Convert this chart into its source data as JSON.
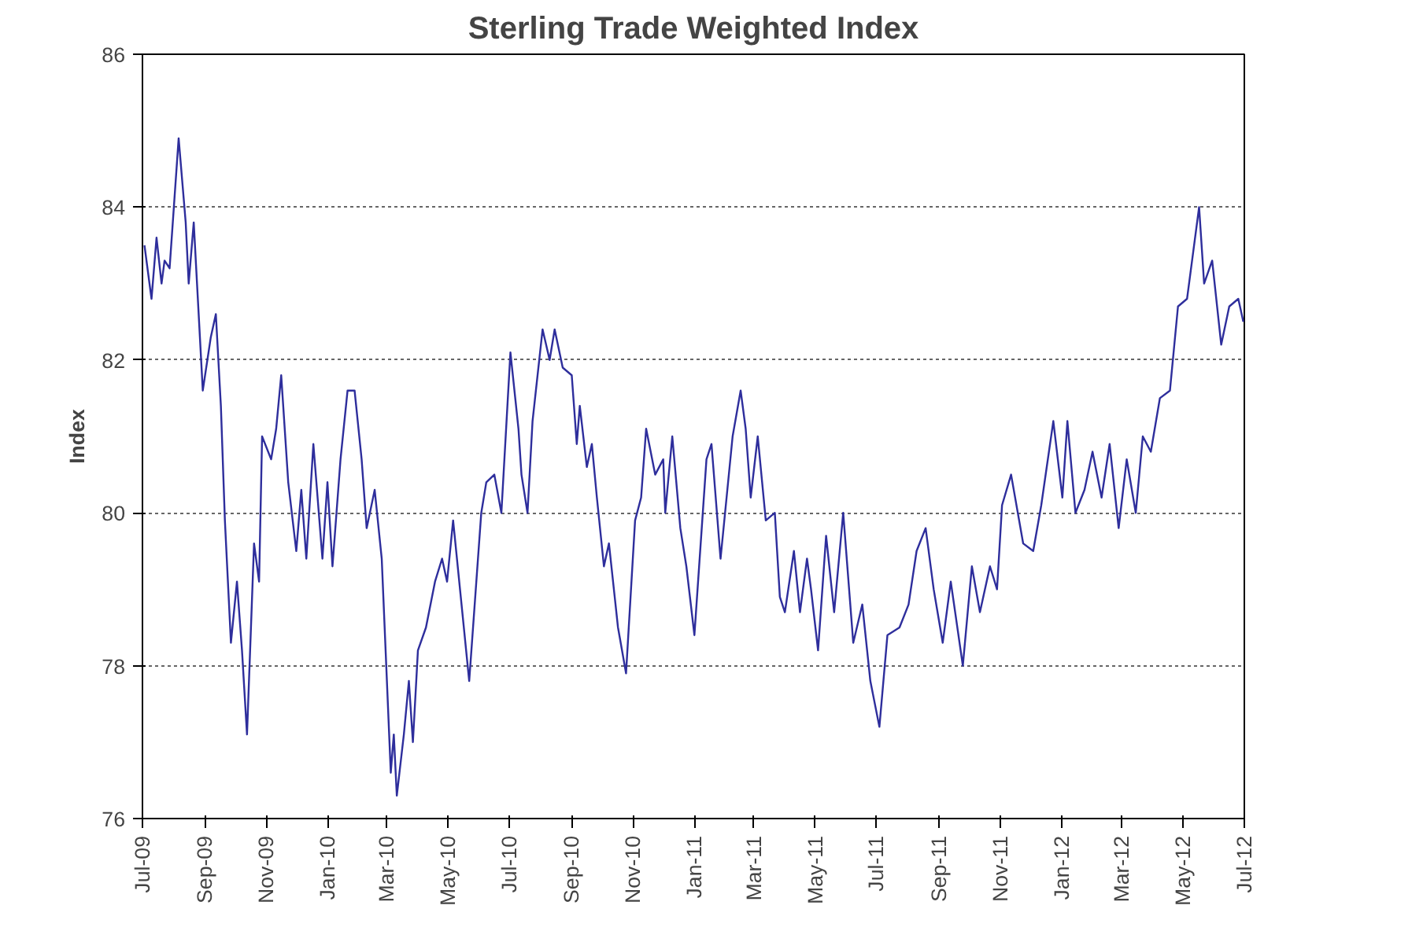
{
  "chart_data": {
    "type": "line",
    "title": "Sterling Trade Weighted Index",
    "ylabel": "Index",
    "xlim": [
      "2009-07-01",
      "2012-07-01"
    ],
    "xticks": [
      {
        "value": "2009-07-01",
        "label": "Jul-09"
      },
      {
        "value": "2009-09-01",
        "label": "Sep-09"
      },
      {
        "value": "2009-11-01",
        "label": "Nov-09"
      },
      {
        "value": "2010-01-01",
        "label": "Jan-10"
      },
      {
        "value": "2010-03-01",
        "label": "Mar-10"
      },
      {
        "value": "2010-05-01",
        "label": "May-10"
      },
      {
        "value": "2010-07-01",
        "label": "Jul-10"
      },
      {
        "value": "2010-09-01",
        "label": "Sep-10"
      },
      {
        "value": "2010-11-01",
        "label": "Nov-10"
      },
      {
        "value": "2011-01-01",
        "label": "Jan-11"
      },
      {
        "value": "2011-03-01",
        "label": "Mar-11"
      },
      {
        "value": "2011-05-01",
        "label": "May-11"
      },
      {
        "value": "2011-07-01",
        "label": "Jul-11"
      },
      {
        "value": "2011-09-01",
        "label": "Sep-11"
      },
      {
        "value": "2011-11-01",
        "label": "Nov-11"
      },
      {
        "value": "2012-01-01",
        "label": "Jan-12"
      },
      {
        "value": "2012-03-01",
        "label": "Mar-12"
      },
      {
        "value": "2012-05-01",
        "label": "May-12"
      },
      {
        "value": "2012-07-01",
        "label": "Jul-12"
      }
    ],
    "ylim": [
      76,
      86
    ],
    "yticks": [
      76,
      78,
      80,
      82,
      84,
      86
    ],
    "grid": "y",
    "marker": "none",
    "line_style": "solid",
    "x": [
      "2009-07-03",
      "2009-07-10",
      "2009-07-15",
      "2009-07-20",
      "2009-07-23",
      "2009-07-28",
      "2009-08-06",
      "2009-08-13",
      "2009-08-16",
      "2009-08-21",
      "2009-08-30",
      "2009-09-07",
      "2009-09-12",
      "2009-09-17",
      "2009-09-21",
      "2009-09-27",
      "2009-10-03",
      "2009-10-08",
      "2009-10-13",
      "2009-10-20",
      "2009-10-25",
      "2009-10-28",
      "2009-11-06",
      "2009-11-11",
      "2009-11-16",
      "2009-11-23",
      "2009-12-01",
      "2009-12-06",
      "2009-12-11",
      "2009-12-18",
      "2009-12-27",
      "2010-01-01",
      "2010-01-06",
      "2010-01-14",
      "2010-01-21",
      "2010-01-28",
      "2010-02-04",
      "2010-02-09",
      "2010-02-17",
      "2010-02-24",
      "2010-03-05",
      "2010-03-08",
      "2010-03-11",
      "2010-03-18",
      "2010-03-23",
      "2010-03-27",
      "2010-04-01",
      "2010-04-09",
      "2010-04-18",
      "2010-04-25",
      "2010-04-30",
      "2010-05-06",
      "2010-05-22",
      "2010-06-03",
      "2010-06-08",
      "2010-06-16",
      "2010-06-23",
      "2010-07-02",
      "2010-07-10",
      "2010-07-13",
      "2010-07-19",
      "2010-07-24",
      "2010-08-03",
      "2010-08-10",
      "2010-08-15",
      "2010-08-23",
      "2010-09-01",
      "2010-09-06",
      "2010-09-09",
      "2010-09-16",
      "2010-09-21",
      "2010-09-26",
      "2010-10-03",
      "2010-10-08",
      "2010-10-17",
      "2010-10-25",
      "2010-11-03",
      "2010-11-09",
      "2010-11-14",
      "2010-11-23",
      "2010-12-01",
      "2010-12-03",
      "2010-12-10",
      "2010-12-18",
      "2010-12-24",
      "2011-01-01",
      "2011-01-13",
      "2011-01-18",
      "2011-01-27",
      "2011-02-08",
      "2011-02-16",
      "2011-02-21",
      "2011-02-26",
      "2011-03-05",
      "2011-03-13",
      "2011-03-22",
      "2011-03-27",
      "2011-04-01",
      "2011-04-10",
      "2011-04-16",
      "2011-04-23",
      "2011-04-27",
      "2011-05-04",
      "2011-05-12",
      "2011-05-20",
      "2011-05-29",
      "2011-06-08",
      "2011-06-17",
      "2011-06-25",
      "2011-07-04",
      "2011-07-12",
      "2011-07-24",
      "2011-08-02",
      "2011-08-10",
      "2011-08-19",
      "2011-08-27",
      "2011-09-05",
      "2011-09-13",
      "2011-09-25",
      "2011-10-04",
      "2011-10-12",
      "2011-10-22",
      "2011-10-29",
      "2011-11-03",
      "2011-11-12",
      "2011-11-24",
      "2011-12-04",
      "2011-12-12",
      "2011-12-24",
      "2012-01-02",
      "2012-01-07",
      "2012-01-15",
      "2012-01-24",
      "2012-02-01",
      "2012-02-10",
      "2012-02-18",
      "2012-02-27",
      "2012-03-06",
      "2012-03-15",
      "2012-03-22",
      "2012-03-30",
      "2012-04-08",
      "2012-04-18",
      "2012-04-26",
      "2012-05-05",
      "2012-05-17",
      "2012-05-22",
      "2012-05-30",
      "2012-06-08",
      "2012-06-16",
      "2012-06-25",
      "2012-06-30"
    ],
    "series": [
      {
        "color": "#2e2e9c",
        "values": [
          83.5,
          82.8,
          83.6,
          83.0,
          83.3,
          83.2,
          84.9,
          83.8,
          83.0,
          83.8,
          81.6,
          82.3,
          82.6,
          81.4,
          79.9,
          78.3,
          79.1,
          78.2,
          77.1,
          79.6,
          79.1,
          81.0,
          80.7,
          81.1,
          81.8,
          80.4,
          79.5,
          80.3,
          79.4,
          80.9,
          79.4,
          80.4,
          79.3,
          80.7,
          81.6,
          81.6,
          80.7,
          79.8,
          80.3,
          79.4,
          76.6,
          77.1,
          76.3,
          77.1,
          77.8,
          77.0,
          78.2,
          78.5,
          79.1,
          79.4,
          79.1,
          79.9,
          77.8,
          80.0,
          80.4,
          80.5,
          80.0,
          82.1,
          81.1,
          80.5,
          80.0,
          81.2,
          82.4,
          82.0,
          82.4,
          81.9,
          81.8,
          80.9,
          81.4,
          80.6,
          80.9,
          80.2,
          79.3,
          79.6,
          78.5,
          77.9,
          79.9,
          80.2,
          81.1,
          80.5,
          80.7,
          80.0,
          81.0,
          79.8,
          79.3,
          78.4,
          80.7,
          80.9,
          79.4,
          81.0,
          81.6,
          81.1,
          80.2,
          81.0,
          79.9,
          80.0,
          78.9,
          78.7,
          79.5,
          78.7,
          79.4,
          79.0,
          78.2,
          79.7,
          78.7,
          80.0,
          78.3,
          78.8,
          77.8,
          77.2,
          78.4,
          78.5,
          78.8,
          79.5,
          79.8,
          79.0,
          78.3,
          79.1,
          78.0,
          79.3,
          78.7,
          79.3,
          79.0,
          80.1,
          80.5,
          79.6,
          79.5,
          80.1,
          81.2,
          80.2,
          81.2,
          80.0,
          80.3,
          80.8,
          80.2,
          80.9,
          79.8,
          80.7,
          80.0,
          81.0,
          80.8,
          81.5,
          81.6,
          82.7,
          82.8,
          84.0,
          83.0,
          83.3,
          82.2,
          82.7,
          82.8,
          82.5
        ]
      }
    ]
  }
}
